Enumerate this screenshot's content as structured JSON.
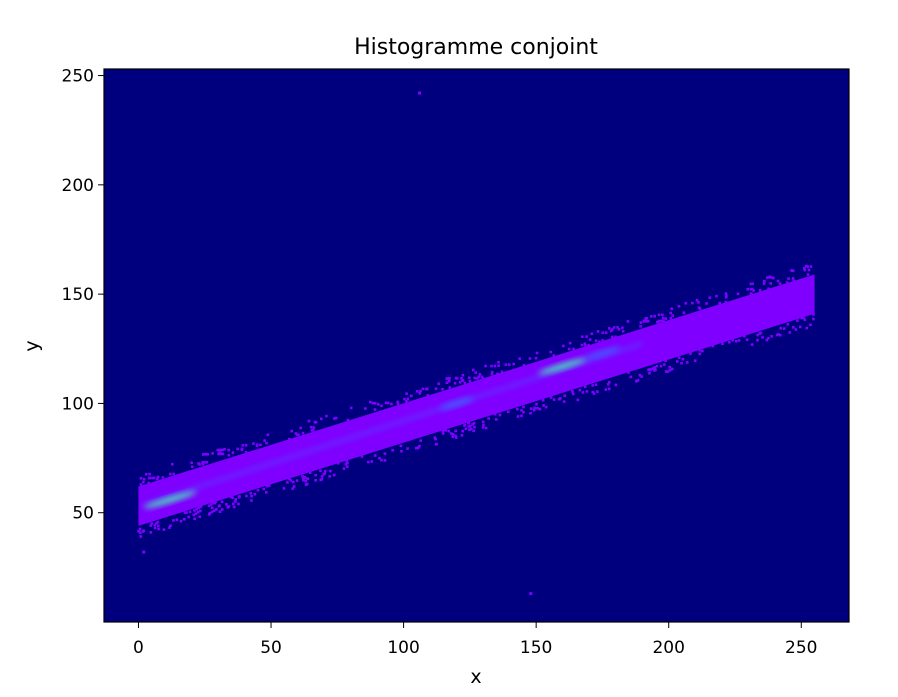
{
  "chart_data": {
    "type": "heatmap",
    "title": "Histogramme conjoint",
    "xlabel": "x",
    "ylabel": "y",
    "xlim": [
      -13,
      268
    ],
    "ylim": [
      0,
      253
    ],
    "xticks": [
      0,
      50,
      100,
      150,
      200,
      250
    ],
    "yticks": [
      50,
      100,
      150,
      200,
      250
    ],
    "xtick_labels": [
      "0",
      "50",
      "100",
      "150",
      "200",
      "250"
    ],
    "ytick_labels": [
      "50",
      "100",
      "150",
      "200",
      "250"
    ],
    "grid": false,
    "band": {
      "x_range": [
        0,
        255
      ],
      "center_y_at_x0": 53,
      "center_y_at_x255": 150,
      "half_width": 9
    },
    "hotspots": [
      {
        "x": 12,
        "y": 56,
        "intensity": 0.9
      },
      {
        "x": 160,
        "y": 117,
        "intensity": 0.8
      },
      {
        "x": 120,
        "y": 100,
        "intensity": 0.45
      },
      {
        "x": 175,
        "y": 123,
        "intensity": 0.5
      }
    ],
    "outliers": [
      {
        "x": 106,
        "y": 242
      },
      {
        "x": 148,
        "y": 13
      },
      {
        "x": 2,
        "y": 32
      }
    ],
    "colors": {
      "background": "#00007f",
      "low": "#7f00ff",
      "mid": "#4060ff",
      "high": "#40ffb0"
    }
  }
}
